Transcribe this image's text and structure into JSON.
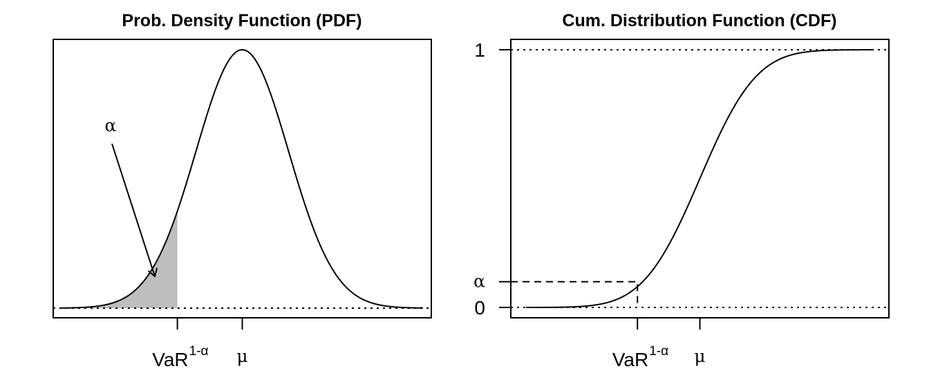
{
  "chart_data": [
    {
      "type": "area",
      "title": "Prob. Density Function (PDF)",
      "distribution": "normal",
      "mean": 0,
      "sd": 1,
      "xlim": [
        -3.9,
        3.9
      ],
      "ylim": [
        0,
        0.3989
      ],
      "var_quantile": -1.4,
      "shaded_region": "tail below VaR",
      "x_ticks": [
        {
          "value": -1.4,
          "label": "VaR",
          "superscript": "1-α"
        },
        {
          "value": 0,
          "label": "μ"
        }
      ],
      "annotation": {
        "label": "α"
      },
      "baseline": "dotted at y = 0"
    },
    {
      "type": "line",
      "title": "Cum. Distribution Function (CDF)",
      "distribution": "normal",
      "mean": 0,
      "sd": 1,
      "xlim": [
        -3.9,
        3.9
      ],
      "ylim": [
        0,
        1
      ],
      "var_quantile": -1.4,
      "alpha_level": 0.1,
      "x_ticks": [
        {
          "value": -1.4,
          "label": "VaR",
          "superscript": "1-α"
        },
        {
          "value": 0,
          "label": "μ"
        }
      ],
      "y_ticks": [
        {
          "value": 0,
          "label": "0"
        },
        {
          "value": 0.1,
          "label": "α"
        },
        {
          "value": 1,
          "label": "1"
        }
      ],
      "reference_lines": "dotted at y = 0 and y = 1",
      "guide": "dashed from α on y-axis to the curve, then down to VaR"
    }
  ]
}
